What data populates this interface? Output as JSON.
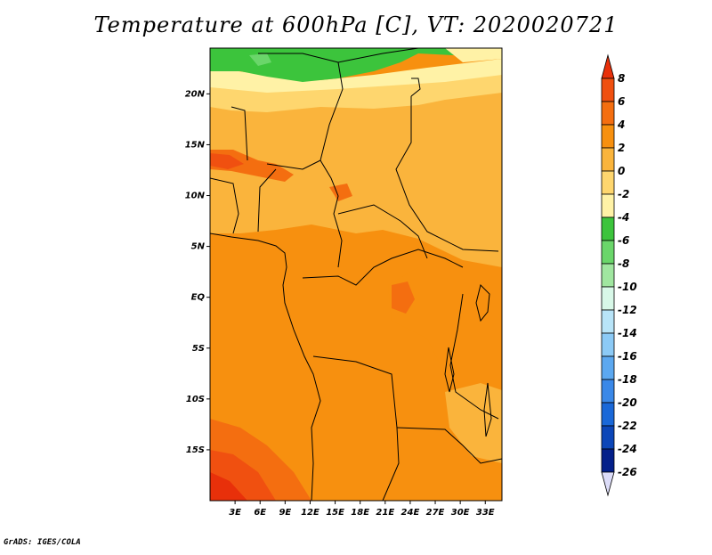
{
  "title": "Temperature at 600hPa [C], VT: 2020020721",
  "credit": "GrADS: IGES/COLA",
  "map": {
    "lat_ticks": [
      {
        "label": "20N",
        "lat": 20
      },
      {
        "label": "15N",
        "lat": 15
      },
      {
        "label": "10N",
        "lat": 10
      },
      {
        "label": "5N",
        "lat": 5
      },
      {
        "label": "EQ",
        "lat": 0
      },
      {
        "label": "5S",
        "lat": -5
      },
      {
        "label": "10S",
        "lat": -10
      },
      {
        "label": "15S",
        "lat": -15
      }
    ],
    "lon_ticks": [
      {
        "label": "3E",
        "lon": 3
      },
      {
        "label": "6E",
        "lon": 6
      },
      {
        "label": "9E",
        "lon": 9
      },
      {
        "label": "12E",
        "lon": 12
      },
      {
        "label": "15E",
        "lon": 15
      },
      {
        "label": "18E",
        "lon": 18
      },
      {
        "label": "21E",
        "lon": 21
      },
      {
        "label": "24E",
        "lon": 24
      },
      {
        "label": "27E",
        "lon": 27
      },
      {
        "label": "30E",
        "lon": 30
      },
      {
        "label": "33E",
        "lon": 33
      }
    ],
    "lon_range": [
      0,
      35
    ],
    "lat_range": [
      -20,
      24.5
    ]
  },
  "colorbar": {
    "levels": [
      "8",
      "6",
      "4",
      "2",
      "0",
      "-2",
      "-4",
      "-6",
      "-8",
      "-10",
      "-12",
      "-14",
      "-16",
      "-18",
      "-20",
      "-22",
      "-24",
      "-26"
    ],
    "colors_top_to_bottom": [
      "#e8300a",
      "#f05010",
      "#f46e10",
      "#f7900f",
      "#fab43c",
      "#fed66e",
      "#fff2a6",
      "#3cc43c",
      "#6ad66a",
      "#a0e6a0",
      "#d8f8e8",
      "#b8e4f8",
      "#8ccaf6",
      "#5ca8f0",
      "#3a88e8",
      "#1a68d8",
      "#0c46b8",
      "#04208a",
      "#dcdcf8"
    ]
  }
}
